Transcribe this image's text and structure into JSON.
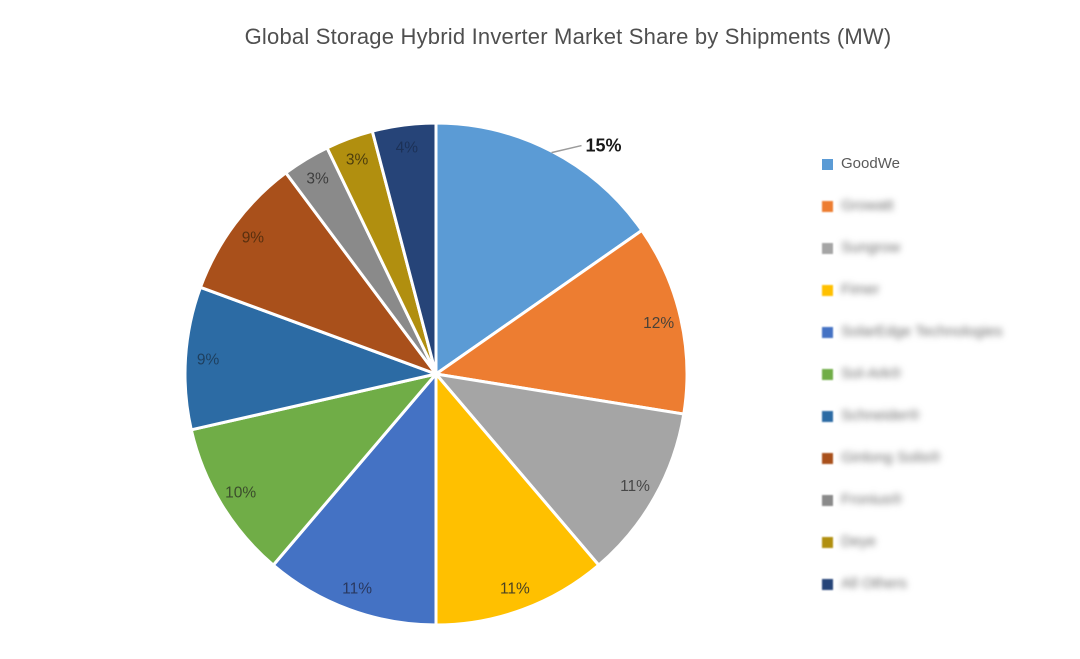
{
  "title": "Global Storage Hybrid Inverter Market Share by Shipments (MW)",
  "chart_data": {
    "type": "pie",
    "title": "Global Storage Hybrid Inverter Market Share by Shipments (MW)",
    "legend_position": "right",
    "direction": "clockwise",
    "start_angle_deg": 0,
    "separator_color": "#ffffff",
    "leader_line_color": "#9b9b9b",
    "slices": [
      {
        "label": "GoodWe",
        "value": 15,
        "display": "15%",
        "color": "#5B9BD5",
        "legend_blurred": false,
        "label_outside": true,
        "label_color": "#1a1a1a"
      },
      {
        "label": "Growatt",
        "value": 12,
        "display": "12%",
        "color": "#ED7D31",
        "legend_blurred": true,
        "label_outside": false,
        "label_color": "#4a4238"
      },
      {
        "label": "Sungrow",
        "value": 11,
        "display": "11%",
        "color": "#A5A5A5",
        "legend_blurred": true,
        "label_outside": false,
        "label_color": "#474747"
      },
      {
        "label": "Fimer",
        "value": 11,
        "display": "11%",
        "color": "#FFC000",
        "legend_blurred": true,
        "label_outside": false,
        "label_color": "#4a4223"
      },
      {
        "label": "SolarEdge Technologies",
        "value": 11,
        "display": "11%",
        "color": "#4472C4",
        "legend_blurred": true,
        "label_outside": false,
        "label_color": "#29385f"
      },
      {
        "label": "Sol-Ark®",
        "value": 10,
        "display": "10%",
        "color": "#70AD47",
        "legend_blurred": true,
        "label_outside": false,
        "label_color": "#3b4d2c"
      },
      {
        "label": "Schneider®",
        "value": 9,
        "display": "9%",
        "color": "#2C6BA4",
        "legend_blurred": true,
        "label_outside": false,
        "label_color": "#1e3f5e"
      },
      {
        "label": "Ginlong Solis®",
        "value": 9,
        "display": "9%",
        "color": "#A9501B",
        "legend_blurred": true,
        "label_outside": false,
        "label_color": "#59300f"
      },
      {
        "label": "Fronius®",
        "value": 3,
        "display": "3%",
        "color": "#8A8A8A",
        "legend_blurred": true,
        "label_outside": false,
        "label_color": "#3d3d3d"
      },
      {
        "label": "Deye",
        "value": 3,
        "display": "3%",
        "color": "#B18F0F",
        "legend_blurred": true,
        "label_outside": false,
        "label_color": "#4d3e0d"
      },
      {
        "label": "All Others",
        "value": 4,
        "display": "4%",
        "color": "#264478",
        "legend_blurred": true,
        "label_outside": false,
        "label_color": "#1c3157"
      }
    ]
  }
}
